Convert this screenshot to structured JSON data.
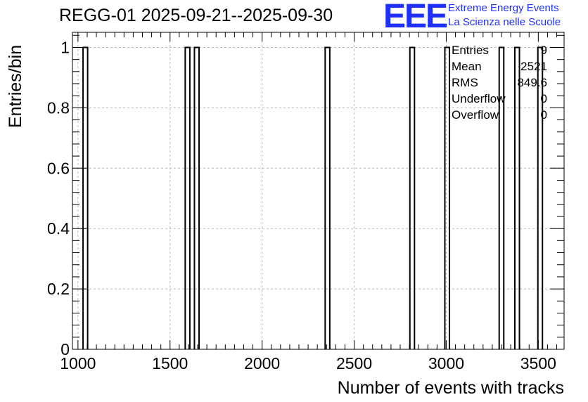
{
  "chart_data": {
    "type": "histogram",
    "title": "REGG-01 2025-09-21--2025-09-30",
    "xlabel": "Number of events with tracks",
    "ylabel": "Entries/bin",
    "xlim": [
      970,
      3640
    ],
    "ylim": [
      0,
      1.05
    ],
    "bin_width": 25,
    "x_ticks": [
      1000,
      1500,
      2000,
      2500,
      3000,
      3500
    ],
    "y_ticks": [
      0,
      0.2,
      0.4,
      0.6,
      0.8,
      1
    ],
    "y_tick_labels": [
      "0",
      "0.2",
      "0.4",
      "0.6",
      "0.8",
      "1"
    ],
    "grid": true,
    "bins": [
      {
        "x": 1040,
        "value": 1
      },
      {
        "x": 1595,
        "value": 1
      },
      {
        "x": 1645,
        "value": 1
      },
      {
        "x": 2355,
        "value": 1
      },
      {
        "x": 2815,
        "value": 1
      },
      {
        "x": 3005,
        "value": 1
      },
      {
        "x": 3300,
        "value": 1
      },
      {
        "x": 3385,
        "value": 1
      },
      {
        "x": 3510,
        "value": 1
      }
    ],
    "stats": [
      {
        "label": "Entries",
        "value": "9"
      },
      {
        "label": "Mean",
        "value": "2521"
      },
      {
        "label": "RMS",
        "value": "849.6"
      },
      {
        "label": "Underflow",
        "value": "0"
      },
      {
        "label": "Overflow",
        "value": "0"
      }
    ]
  },
  "logo": {
    "mark": "EEE",
    "line1": "Extreme Energy Events",
    "line2": "La Scienza nelle Scuole",
    "color": "#1f2fff"
  }
}
